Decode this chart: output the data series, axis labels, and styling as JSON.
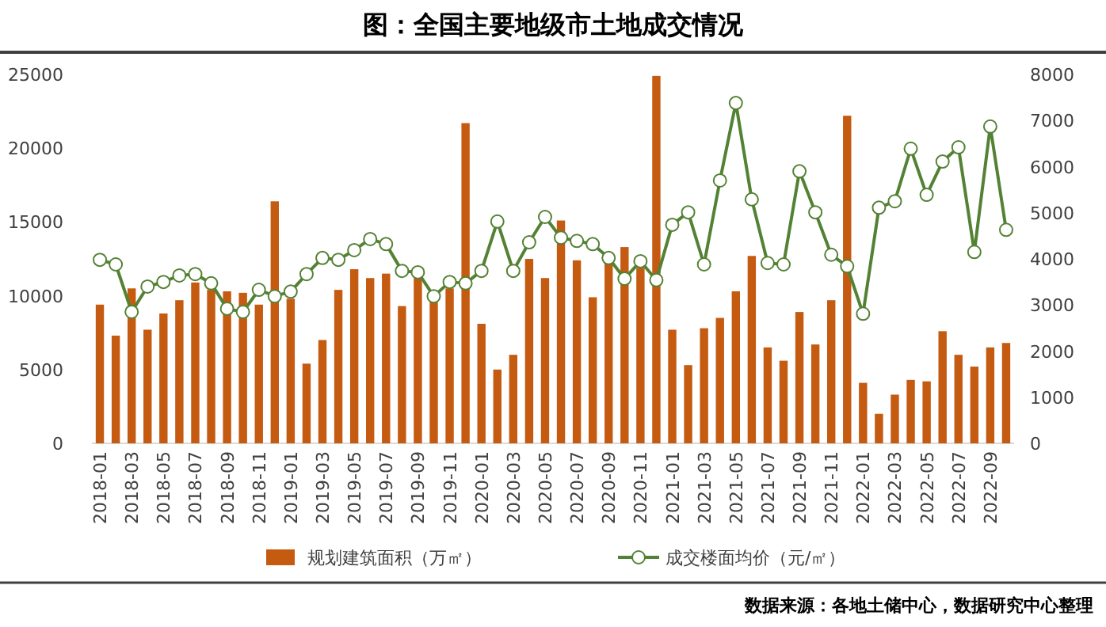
{
  "chart_data": {
    "type": "bar",
    "title": "图：全国主要地级市土地成交情况",
    "categories": [
      "2018-01",
      null,
      "2018-03",
      null,
      "2018-05",
      null,
      "2018-07",
      null,
      "2018-09",
      null,
      "2018-11",
      null,
      "2019-01",
      null,
      "2019-03",
      null,
      "2019-05",
      null,
      "2019-07",
      null,
      "2019-09",
      null,
      "2019-11",
      null,
      "2020-01",
      null,
      "2020-03",
      null,
      "2020-05",
      null,
      "2020-07",
      null,
      "2020-09",
      null,
      "2020-11",
      null,
      "2021-01",
      null,
      "2021-03",
      null,
      "2021-05",
      null,
      "2021-07",
      null,
      "2021-09",
      null,
      "2021-11",
      null,
      "2022-01",
      null,
      "2022-03",
      null,
      "2022-05",
      null,
      "2022-07",
      null,
      "2022-09",
      null
    ],
    "series": [
      {
        "name": "规划建筑面积（万㎡）",
        "color": "#c55a11",
        "values": [
          9400,
          7300,
          10500,
          7700,
          8800,
          9700,
          10900,
          10400,
          10300,
          10200,
          9400,
          16400,
          9800,
          5400,
          7000,
          10400,
          11800,
          11200,
          11500,
          9300,
          11200,
          9700,
          10500,
          21700,
          8100,
          5000,
          6000,
          12500,
          11200,
          15100,
          12400,
          9900,
          12200,
          13300,
          11900,
          24900,
          7700,
          5300,
          7800,
          8500,
          10300,
          12700,
          6500,
          5600,
          8900,
          6700,
          9700,
          22200,
          4100,
          2000,
          3300,
          4300,
          4200,
          7600,
          6000,
          5200,
          6500,
          6800
        ]
      },
      {
        "name": "成交楼面均价（元/㎡）",
        "type": "line",
        "axis": "y2",
        "marker": "circle",
        "color": "#548235",
        "values": [
          3980,
          3880,
          2850,
          3400,
          3500,
          3640,
          3670,
          3470,
          2920,
          2850,
          3330,
          3190,
          3290,
          3670,
          4020,
          3980,
          4190,
          4430,
          4320,
          3740,
          3710,
          3190,
          3500,
          3470,
          3740,
          4810,
          3740,
          4360,
          4910,
          4460,
          4390,
          4320,
          4020,
          3570,
          3950,
          3540,
          4740,
          5010,
          3880,
          5700,
          7380,
          5290,
          3910,
          3880,
          5900,
          5010,
          4090,
          3840,
          2810,
          5110,
          5250,
          6390,
          5390,
          6110,
          6420,
          4150,
          6870,
          4630
        ]
      }
    ],
    "ylim": [
      0,
      25000
    ],
    "yticks": [
      0,
      5000,
      10000,
      15000,
      20000,
      25000
    ],
    "y2lim": [
      0,
      8000
    ],
    "y2ticks": [
      0,
      1000,
      2000,
      3000,
      4000,
      5000,
      6000,
      7000,
      8000
    ],
    "legend": "bottom",
    "annotations": [
      "数据来源：各地土储中心，数据研究中心整理"
    ]
  }
}
